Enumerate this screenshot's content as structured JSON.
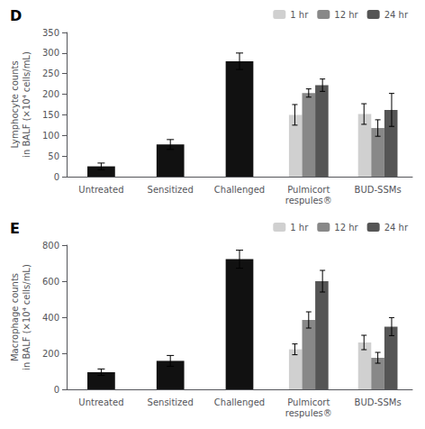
{
  "chart_data": [
    {
      "type": "bar",
      "title": "D",
      "ylabel": "Lymphocyte counts\nin BALF (×10⁴ cells/mL)",
      "categories": [
        "Untreated",
        "Sensitized",
        "Challenged",
        "Pulmicort\nrespules®",
        "BUD-SSMs"
      ],
      "series": [
        {
          "color": "#111111",
          "values": [
            25,
            78,
            280,
            null,
            null
          ],
          "errors": [
            8,
            12,
            20,
            null,
            null
          ]
        },
        {
          "name": "1 hr",
          "color": "#d0d0d0",
          "values": [
            null,
            null,
            null,
            150,
            152
          ],
          "errors": [
            null,
            null,
            null,
            25,
            25
          ]
        },
        {
          "name": "12 hr",
          "color": "#888888",
          "values": [
            null,
            null,
            null,
            203,
            118
          ],
          "errors": [
            null,
            null,
            null,
            10,
            20
          ]
        },
        {
          "name": "24 hr",
          "color": "#555555",
          "values": [
            null,
            null,
            null,
            222,
            162
          ],
          "errors": [
            null,
            null,
            null,
            15,
            40
          ]
        }
      ],
      "ylim": [
        0,
        350
      ],
      "yticks": [
        0,
        50,
        100,
        150,
        200,
        250,
        300,
        350
      ],
      "grid": false,
      "legend": "upper right"
    },
    {
      "type": "bar",
      "title": "E",
      "ylabel": "Macrophage counts\nin BALF (×10⁴ cells/mL)",
      "categories": [
        "Untreated",
        "Sensitized",
        "Challenged",
        "Pulmicort\nrespules®",
        "BUD-SSMs"
      ],
      "series": [
        {
          "color": "#111111",
          "values": [
            95,
            158,
            722,
            null,
            null
          ],
          "errors": [
            18,
            30,
            50,
            null,
            null
          ]
        },
        {
          "name": "1 hr",
          "color": "#d0d0d0",
          "values": [
            null,
            null,
            null,
            222,
            260
          ],
          "errors": [
            null,
            null,
            null,
            30,
            40
          ]
        },
        {
          "name": "12 hr",
          "color": "#888888",
          "values": [
            null,
            null,
            null,
            385,
            175
          ],
          "errors": [
            null,
            null,
            null,
            45,
            30
          ]
        },
        {
          "name": "24 hr",
          "color": "#555555",
          "values": [
            null,
            null,
            null,
            600,
            348
          ],
          "errors": [
            null,
            null,
            null,
            60,
            50
          ]
        }
      ],
      "ylim": [
        0,
        800
      ],
      "yticks": [
        0,
        200,
        400,
        600,
        800
      ],
      "grid": false,
      "legend": "upper right"
    }
  ]
}
